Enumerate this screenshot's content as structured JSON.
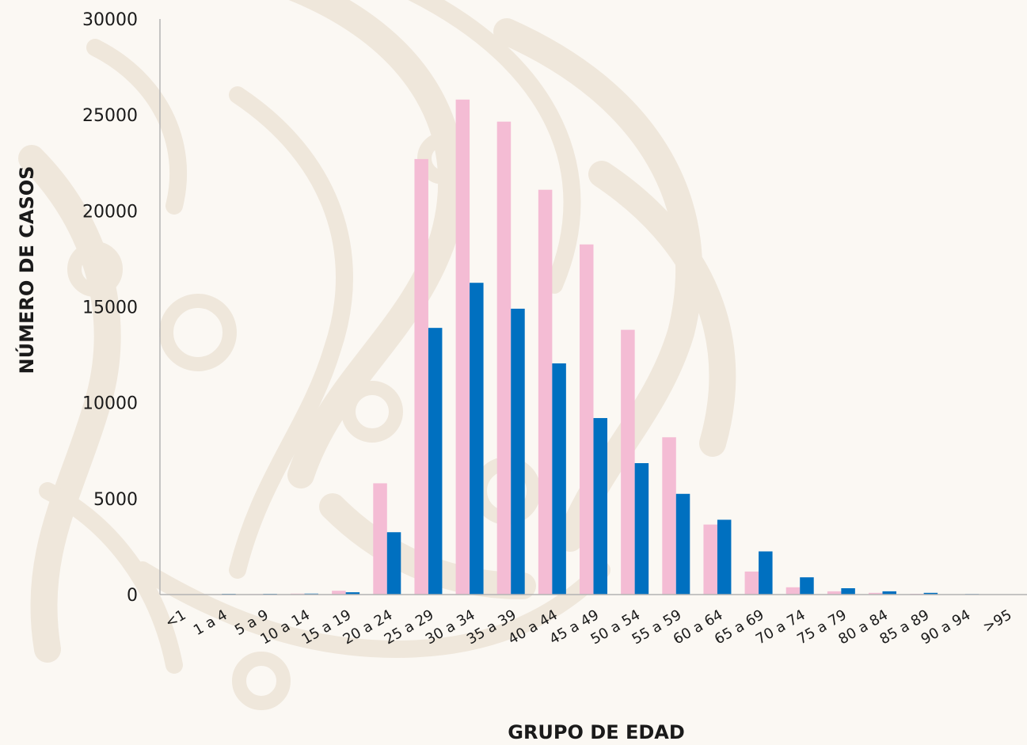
{
  "chart_data": {
    "type": "bar",
    "title": "",
    "xlabel": "GRUPO DE EDAD",
    "ylabel": "NÚMERO DE CASOS",
    "ylim": [
      0,
      30000
    ],
    "yticks": [
      0,
      5000,
      10000,
      15000,
      20000,
      25000,
      30000
    ],
    "grid": false,
    "legend": "none",
    "categories": [
      "<1",
      "1 a 4",
      "5 a 9",
      "10 a 14",
      "15 a 19",
      "20 a 24",
      "25 a 29",
      "30 a 34",
      "35 a 39",
      "40 a 44",
      "45 a 49",
      "50 a 54",
      "55 a 59",
      "60 a 64",
      "65 a 69",
      "70 a 74",
      "75 a 79",
      "80 a 84",
      "85 a 89",
      "90 a 94",
      ">95"
    ],
    "series": [
      {
        "color": "#f4bcd4",
        "values": [
          10,
          20,
          25,
          50,
          200,
          5800,
          22700,
          25800,
          24650,
          21100,
          18250,
          13800,
          8200,
          3650,
          1200,
          380,
          170,
          90,
          40,
          15,
          5
        ]
      },
      {
        "color": "#0070c0",
        "values": [
          15,
          40,
          40,
          50,
          120,
          3250,
          13900,
          16250,
          14900,
          12050,
          9200,
          6850,
          5250,
          3900,
          2250,
          900,
          330,
          170,
          90,
          30,
          10
        ]
      }
    ]
  },
  "colors": {
    "background": "#fbf8f3",
    "watermark": "#efe7db",
    "axis": "#b3b3b3",
    "text": "#1a1a1a"
  }
}
